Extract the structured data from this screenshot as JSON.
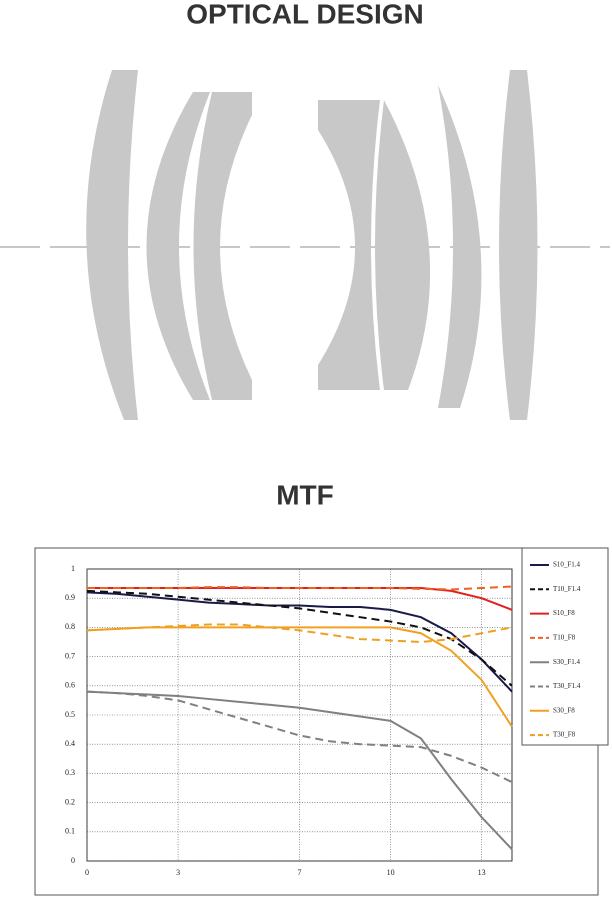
{
  "header": {
    "title": "OPTICAL DESIGN"
  },
  "chart_data": {
    "type": "line",
    "title": "MTF",
    "x": [
      0,
      1,
      2,
      3,
      4,
      5,
      6,
      7,
      8,
      9,
      10,
      11,
      12,
      13,
      14
    ],
    "xlim": [
      0,
      14
    ],
    "xticks": [
      0,
      3,
      7,
      10,
      13
    ],
    "ylim": [
      0,
      1
    ],
    "yticks": [
      0,
      0.1,
      0.2,
      0.3,
      0.4,
      0.5,
      0.6,
      0.7,
      0.8,
      0.9,
      1
    ],
    "grid": true,
    "legend": "right",
    "series": [
      {
        "name": "S10_F1.4",
        "color": "#1a1a4a",
        "dashed": false,
        "values": [
          0.92,
          0.915,
          0.905,
          0.895,
          0.885,
          0.88,
          0.875,
          0.875,
          0.87,
          0.87,
          0.86,
          0.835,
          0.78,
          0.69,
          0.58
        ]
      },
      {
        "name": "T10_F1.4",
        "color": "#111111",
        "dashed": true,
        "values": [
          0.925,
          0.92,
          0.915,
          0.905,
          0.895,
          0.885,
          0.875,
          0.865,
          0.85,
          0.835,
          0.82,
          0.8,
          0.76,
          0.69,
          0.6
        ]
      },
      {
        "name": "S10_F8",
        "color": "#e02020",
        "dashed": false,
        "values": [
          0.935,
          0.935,
          0.935,
          0.935,
          0.935,
          0.935,
          0.935,
          0.935,
          0.935,
          0.935,
          0.935,
          0.935,
          0.925,
          0.9,
          0.86
        ]
      },
      {
        "name": "T10_F8",
        "color": "#f06020",
        "dashed": true,
        "values": [
          0.935,
          0.935,
          0.935,
          0.935,
          0.938,
          0.938,
          0.935,
          0.935,
          0.935,
          0.935,
          0.935,
          0.932,
          0.93,
          0.935,
          0.94
        ]
      },
      {
        "name": "S30_F1.4",
        "color": "#808080",
        "dashed": false,
        "values": [
          0.58,
          0.575,
          0.57,
          0.565,
          0.555,
          0.545,
          0.535,
          0.525,
          0.51,
          0.495,
          0.48,
          0.42,
          0.28,
          0.15,
          0.04
        ]
      },
      {
        "name": "T30_F1.4",
        "color": "#808080",
        "dashed": true,
        "values": [
          0.58,
          0.575,
          0.565,
          0.55,
          0.52,
          0.49,
          0.46,
          0.43,
          0.41,
          0.4,
          0.395,
          0.39,
          0.36,
          0.32,
          0.27
        ]
      },
      {
        "name": "S30_F8",
        "color": "#f0a020",
        "dashed": false,
        "values": [
          0.79,
          0.795,
          0.8,
          0.8,
          0.8,
          0.8,
          0.8,
          0.8,
          0.8,
          0.8,
          0.8,
          0.78,
          0.72,
          0.62,
          0.46
        ]
      },
      {
        "name": "T30_F8",
        "color": "#f0a020",
        "dashed": true,
        "values": [
          0.79,
          0.795,
          0.8,
          0.805,
          0.81,
          0.81,
          0.8,
          0.79,
          0.775,
          0.76,
          0.755,
          0.75,
          0.76,
          0.78,
          0.8
        ]
      }
    ]
  }
}
